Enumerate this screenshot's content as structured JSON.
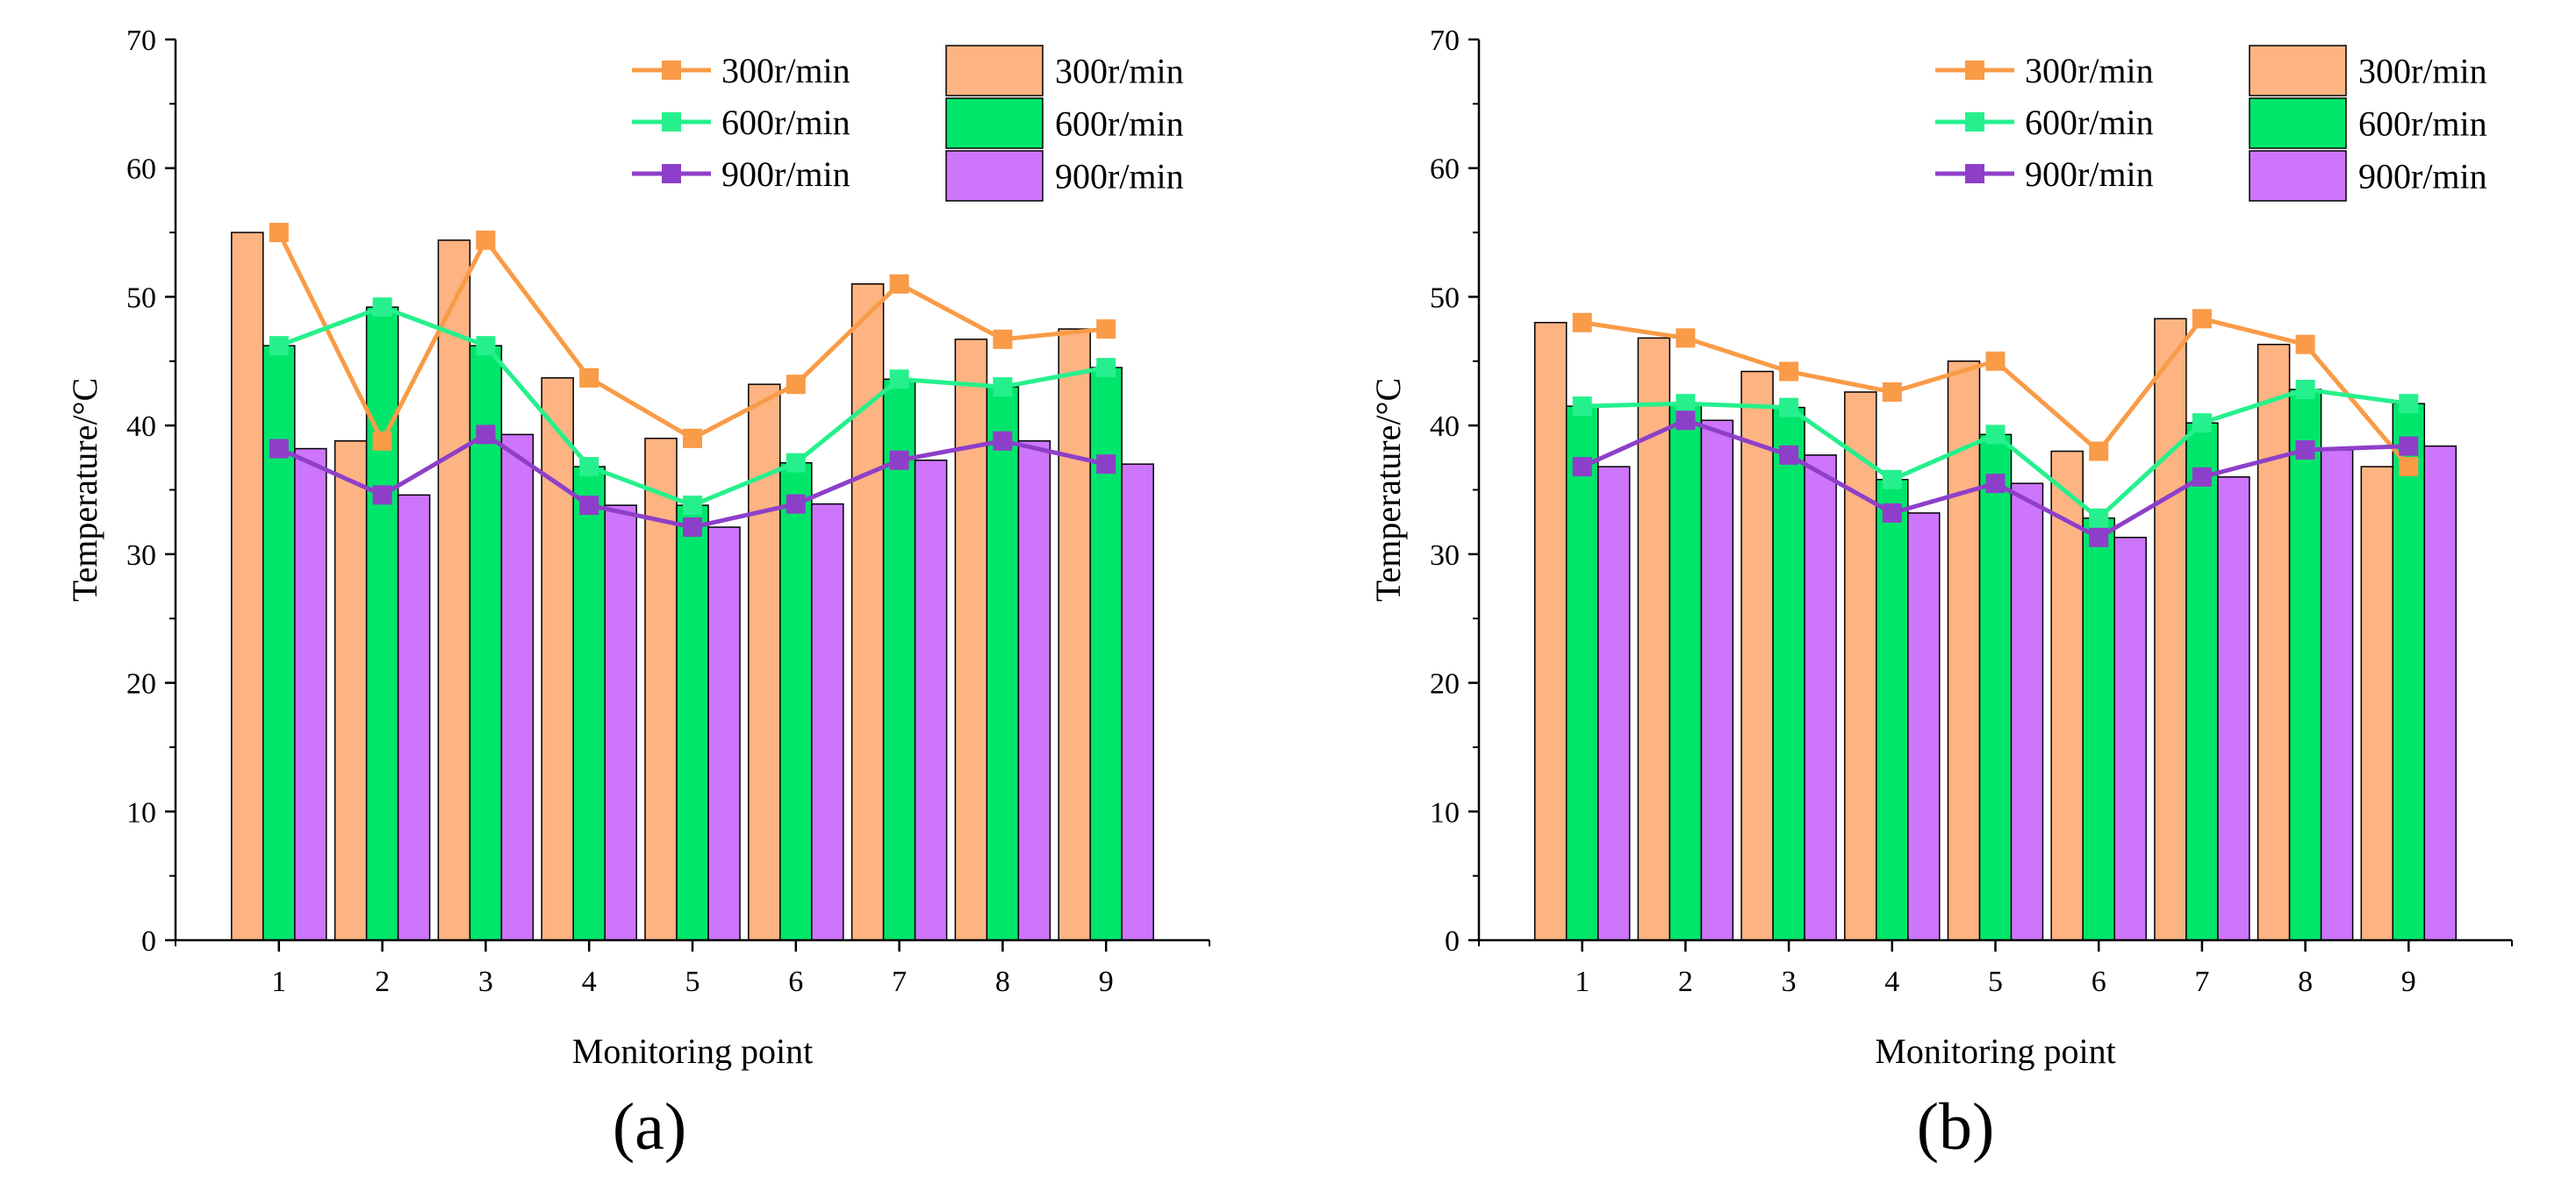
{
  "colors": {
    "300r/min": "#FDB382",
    "600r/min": "#00E66B",
    "900r/min": "#CD75FB",
    "line_300r/min": "#F99B47",
    "line_600r/min": "#25F08C",
    "line_900r/min": "#8E3FC9",
    "marker_300r/min": "#F99B47",
    "marker_600r/min": "#26F08D",
    "marker_900r/min": "#8E3FC9"
  },
  "chart_data": [
    {
      "type": "bar+line",
      "panel_label": "(a)",
      "xlabel": "Monitoring point",
      "ylabel": "Temperature/°C",
      "ylim": [
        0,
        70
      ],
      "yticks": [
        "0",
        "10",
        "20",
        "30",
        "40",
        "50",
        "60",
        "70"
      ],
      "categories": [
        "1",
        "2",
        "3",
        "4",
        "5",
        "6",
        "7",
        "8",
        "9"
      ],
      "series": [
        {
          "name": "300r/min",
          "bar_values": [
            55.0,
            38.8,
            54.4,
            43.7,
            39.0,
            43.2,
            51.0,
            46.7,
            47.5
          ],
          "line_values": [
            55.0,
            38.8,
            54.4,
            43.7,
            39.0,
            43.2,
            51.0,
            46.7,
            47.5
          ]
        },
        {
          "name": "600r/min",
          "bar_values": [
            46.2,
            49.2,
            46.2,
            36.8,
            33.8,
            37.1,
            43.6,
            43.0,
            44.5
          ],
          "line_values": [
            46.2,
            49.2,
            46.2,
            36.8,
            33.8,
            37.1,
            43.6,
            43.0,
            44.5
          ]
        },
        {
          "name": "900r/min",
          "bar_values": [
            38.2,
            34.6,
            39.3,
            33.8,
            32.1,
            33.9,
            37.3,
            38.8,
            37.0
          ],
          "line_values": [
            38.2,
            34.6,
            39.3,
            33.8,
            32.1,
            33.9,
            37.3,
            38.8,
            37.0
          ]
        }
      ],
      "legend": {
        "line_entries": [
          "300r/min",
          "600r/min",
          "900r/min"
        ],
        "bar_entries": [
          "300r/min",
          "600r/min",
          "900r/min"
        ],
        "placement": "top-right"
      }
    },
    {
      "type": "bar+line",
      "panel_label": "(b)",
      "xlabel": "Monitoring point",
      "ylabel": "Temperature/°C",
      "ylim": [
        0,
        70
      ],
      "yticks": [
        "0",
        "10",
        "20",
        "30",
        "40",
        "50",
        "60",
        "70"
      ],
      "categories": [
        "1",
        "2",
        "3",
        "4",
        "5",
        "6",
        "7",
        "8",
        "9"
      ],
      "series": [
        {
          "name": "300r/min",
          "bar_values": [
            48.0,
            46.8,
            44.2,
            42.6,
            45.0,
            38.0,
            48.3,
            46.3,
            36.8
          ],
          "line_values": [
            48.0,
            46.8,
            44.2,
            42.6,
            45.0,
            38.0,
            48.3,
            46.3,
            36.8
          ]
        },
        {
          "name": "600r/min",
          "bar_values": [
            41.5,
            41.7,
            41.4,
            35.8,
            39.3,
            32.8,
            40.2,
            42.8,
            41.7
          ],
          "line_values": [
            41.5,
            41.7,
            41.4,
            35.8,
            39.3,
            32.8,
            40.2,
            42.8,
            41.7
          ]
        },
        {
          "name": "900r/min",
          "bar_values": [
            36.8,
            40.4,
            37.7,
            33.2,
            35.5,
            31.3,
            36.0,
            38.1,
            38.4
          ],
          "line_values": [
            36.8,
            40.4,
            37.7,
            33.2,
            35.5,
            31.3,
            36.0,
            38.1,
            38.4
          ]
        }
      ],
      "legend": {
        "line_entries": [
          "300r/min",
          "600r/min",
          "900r/min"
        ],
        "bar_entries": [
          "300r/min",
          "600r/min",
          "900r/min"
        ],
        "placement": "top-right"
      }
    }
  ]
}
